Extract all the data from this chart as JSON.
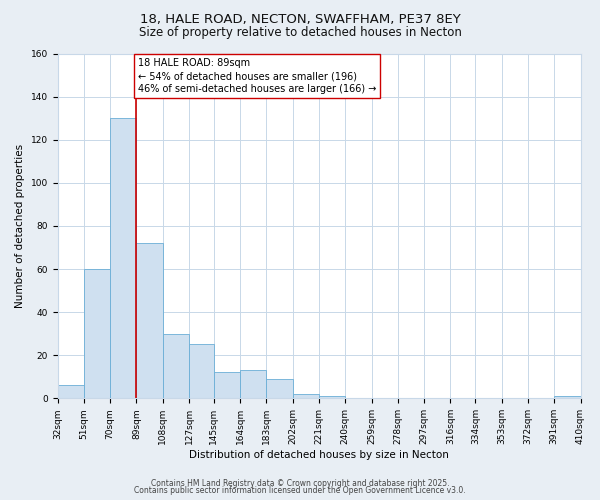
{
  "title1": "18, HALE ROAD, NECTON, SWAFFHAM, PE37 8EY",
  "title2": "Size of property relative to detached houses in Necton",
  "xlabel": "Distribution of detached houses by size in Necton",
  "ylabel": "Number of detached properties",
  "bar_color": "#cfe0f0",
  "bar_edge_color": "#6aaed6",
  "bar_left_edges": [
    32,
    51,
    70,
    89,
    108,
    127,
    145,
    164,
    183,
    202,
    221,
    240,
    259,
    278,
    297,
    316,
    334,
    353,
    372,
    391
  ],
  "bar_widths": [
    19,
    19,
    19,
    19,
    19,
    18,
    19,
    19,
    19,
    19,
    19,
    19,
    19,
    19,
    19,
    18,
    19,
    19,
    19,
    19
  ],
  "bar_heights": [
    6,
    60,
    130,
    72,
    30,
    25,
    12,
    13,
    9,
    2,
    1,
    0,
    0,
    0,
    0,
    0,
    0,
    0,
    0,
    1
  ],
  "xlim": [
    32,
    410
  ],
  "ylim": [
    0,
    160
  ],
  "yticks": [
    0,
    20,
    40,
    60,
    80,
    100,
    120,
    140,
    160
  ],
  "xtick_labels": [
    "32sqm",
    "51sqm",
    "70sqm",
    "89sqm",
    "108sqm",
    "127sqm",
    "145sqm",
    "164sqm",
    "183sqm",
    "202sqm",
    "221sqm",
    "240sqm",
    "259sqm",
    "278sqm",
    "297sqm",
    "316sqm",
    "334sqm",
    "353sqm",
    "372sqm",
    "391sqm",
    "410sqm"
  ],
  "xtick_positions": [
    32,
    51,
    70,
    89,
    108,
    127,
    145,
    164,
    183,
    202,
    221,
    240,
    259,
    278,
    297,
    316,
    334,
    353,
    372,
    391,
    410
  ],
  "vline_x": 89,
  "vline_color": "#cc0000",
  "annotation_line1": "18 HALE ROAD: 89sqm",
  "annotation_line2": "← 54% of detached houses are smaller (196)",
  "annotation_line3": "46% of semi-detached houses are larger (166) →",
  "footer1": "Contains HM Land Registry data © Crown copyright and database right 2025.",
  "footer2": "Contains public sector information licensed under the Open Government Licence v3.0.",
  "bg_color": "#e8eef4",
  "plot_bg_color": "#ffffff",
  "grid_color": "#c8d8e8",
  "title_fontsize": 9.5,
  "subtitle_fontsize": 8.5,
  "axis_label_fontsize": 7.5,
  "tick_fontsize": 6.5,
  "annot_fontsize": 7,
  "footer_fontsize": 5.5
}
